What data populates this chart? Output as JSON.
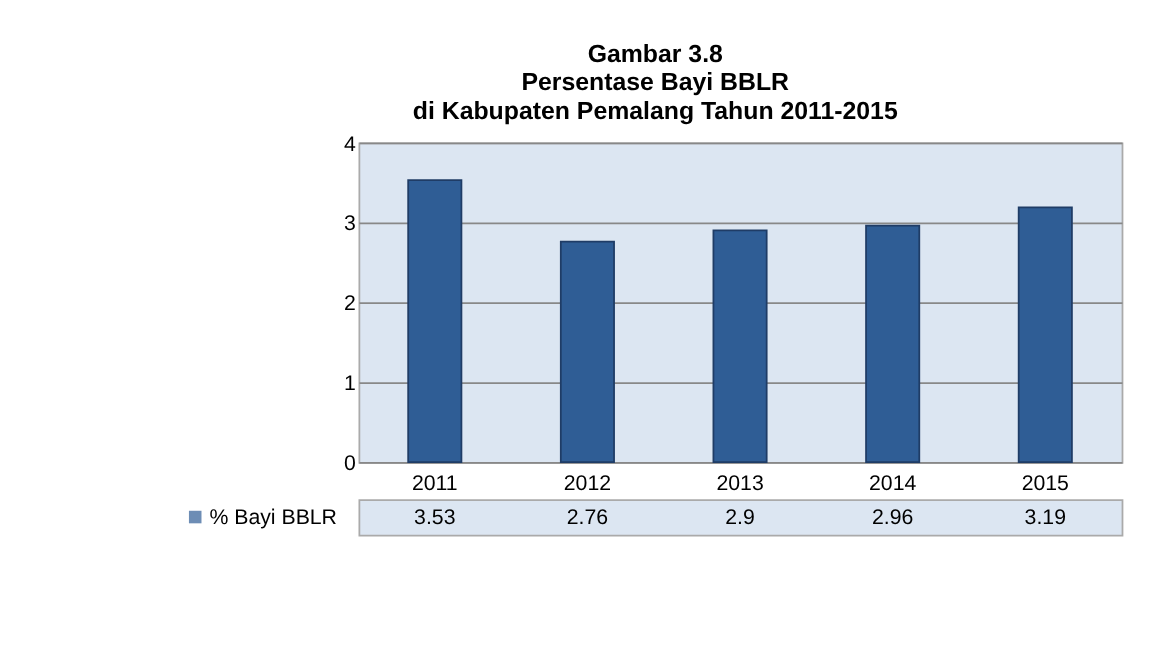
{
  "chart_data": {
    "type": "bar",
    "title": [
      "Gambar 3.8",
      "Persentase Bayi BBLR",
      "di Kabupaten Pemalang Tahun 2011-2015"
    ],
    "categories": [
      "2011",
      "2012",
      "2013",
      "2014",
      "2015"
    ],
    "series": [
      {
        "name": "% Bayi BBLR",
        "color": "#2f5d95",
        "values": [
          3.53,
          2.76,
          2.9,
          2.96,
          3.19
        ]
      }
    ],
    "ylim": [
      0,
      4
    ],
    "yticks": [
      0,
      1,
      2,
      3,
      4
    ],
    "grid": "y",
    "data_labels": true,
    "legend": "bottom left"
  }
}
